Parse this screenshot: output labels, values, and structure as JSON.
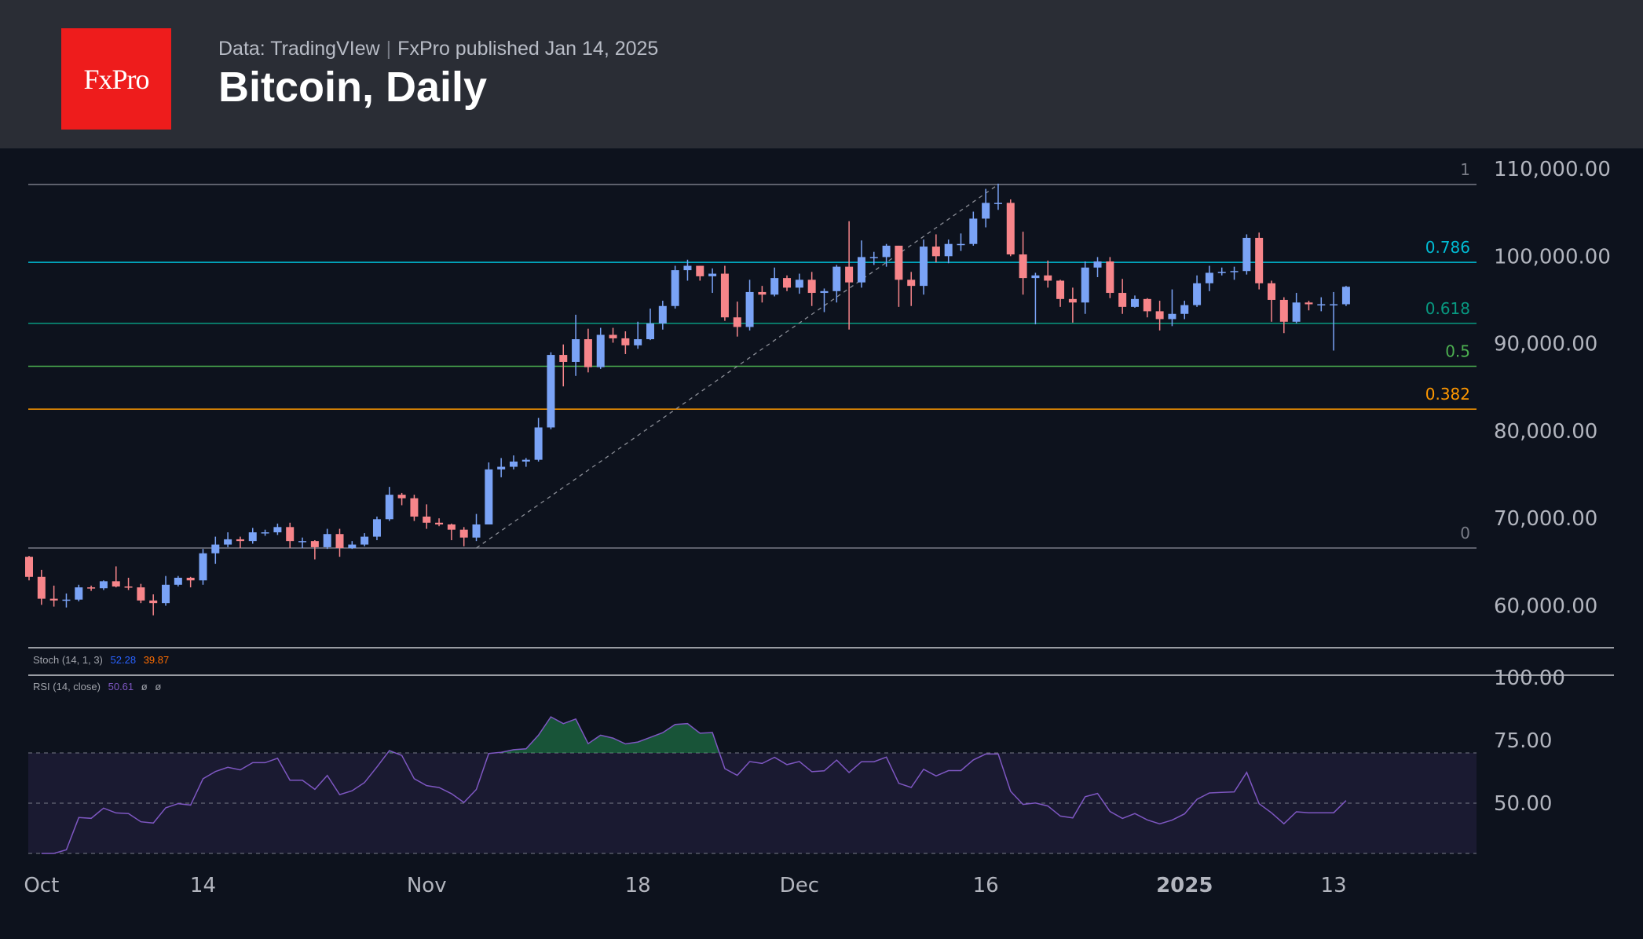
{
  "header": {
    "logo_text": "FxPro",
    "source": "Data: TradingVIew",
    "publisher": "FxPro published Jan 14, 2025",
    "title": "Bitcoin, Daily"
  },
  "colors": {
    "up": "#7aa3f6",
    "down": "#f7858a",
    "background": "#0d121d",
    "rsi": "#7e57c2"
  },
  "chart_data": [
    {
      "type": "candlestick",
      "title": "Bitcoin, Daily",
      "ylim": [
        53000,
        115000
      ],
      "y_ticks": [
        "110,000.00",
        "100,000.00",
        "90,000.00",
        "80,000.00",
        "70,000.00",
        "60,000.00"
      ],
      "y_tick_values": [
        110000,
        100000,
        90000,
        80000,
        70000,
        60000
      ],
      "x_ticks": [
        {
          "label": "Oct",
          "date": "2024-10-01"
        },
        {
          "label": "14",
          "date": "2024-10-14"
        },
        {
          "label": "Nov",
          "date": "2024-11-01"
        },
        {
          "label": "18",
          "date": "2024-11-18"
        },
        {
          "label": "Dec",
          "date": "2024-12-01"
        },
        {
          "label": "16",
          "date": "2024-12-16"
        },
        {
          "label": "2025",
          "date": "2025-01-01",
          "bold": true
        },
        {
          "label": "13",
          "date": "2025-01-13"
        }
      ],
      "fibonacci": {
        "from": {
          "date": "2024-11-05",
          "price": 66600
        },
        "to": {
          "date": "2024-12-17",
          "price": 108200
        },
        "levels": [
          {
            "label": "1",
            "ratio": 1,
            "color": "#787b86"
          },
          {
            "label": "0.786",
            "ratio": 0.786,
            "color": "#00bcd4"
          },
          {
            "label": "0.618",
            "ratio": 0.618,
            "color": "#089981"
          },
          {
            "label": "0.5",
            "ratio": 0.5,
            "color": "#4caf50"
          },
          {
            "label": "0.382",
            "ratio": 0.382,
            "color": "#ff9800"
          },
          {
            "label": "0",
            "ratio": 0,
            "color": "#787b86"
          }
        ]
      },
      "columns": [
        "date",
        "open",
        "high",
        "low",
        "close"
      ],
      "candles": [
        [
          "2024-09-30",
          65600,
          65700,
          62900,
          63300
        ],
        [
          "2024-10-01",
          63300,
          64100,
          60100,
          60800
        ],
        [
          "2024-10-02",
          60800,
          62300,
          59900,
          60600
        ],
        [
          "2024-10-03",
          60600,
          61400,
          59800,
          60700
        ],
        [
          "2024-10-04",
          60700,
          62400,
          60500,
          62100
        ],
        [
          "2024-10-05",
          62100,
          62300,
          61700,
          62000
        ],
        [
          "2024-10-06",
          62000,
          62900,
          61800,
          62800
        ],
        [
          "2024-10-07",
          62800,
          64500,
          62100,
          62200
        ],
        [
          "2024-10-08",
          62200,
          63200,
          61800,
          62100
        ],
        [
          "2024-10-09",
          62100,
          62500,
          60300,
          60600
        ],
        [
          "2024-10-10",
          60600,
          61300,
          58900,
          60300
        ],
        [
          "2024-10-11",
          60300,
          63400,
          60000,
          62400
        ],
        [
          "2024-10-12",
          62400,
          63400,
          62200,
          63200
        ],
        [
          "2024-10-13",
          63200,
          63300,
          62100,
          62900
        ],
        [
          "2024-10-14",
          62900,
          66500,
          62400,
          66000
        ],
        [
          "2024-10-15",
          66000,
          67900,
          64800,
          67000
        ],
        [
          "2024-10-16",
          67000,
          68400,
          66700,
          67600
        ],
        [
          "2024-10-17",
          67600,
          67900,
          66600,
          67400
        ],
        [
          "2024-10-18",
          67400,
          68900,
          67100,
          68400
        ],
        [
          "2024-10-19",
          68400,
          68700,
          68000,
          68400
        ],
        [
          "2024-10-20",
          68400,
          69400,
          68100,
          69000
        ],
        [
          "2024-10-21",
          69000,
          69500,
          66600,
          67400
        ],
        [
          "2024-10-22",
          67400,
          67800,
          66600,
          67400
        ],
        [
          "2024-10-23",
          67400,
          67500,
          65300,
          66700
        ],
        [
          "2024-10-24",
          66700,
          68800,
          66500,
          68200
        ],
        [
          "2024-10-25",
          68200,
          68800,
          65600,
          66600
        ],
        [
          "2024-10-26",
          66600,
          67400,
          66500,
          67000
        ],
        [
          "2024-10-27",
          67000,
          68300,
          66800,
          67900
        ],
        [
          "2024-10-28",
          67900,
          70200,
          67500,
          69900
        ],
        [
          "2024-10-29",
          69900,
          73600,
          69700,
          72700
        ],
        [
          "2024-10-30",
          72700,
          72900,
          71500,
          72300
        ],
        [
          "2024-10-31",
          72300,
          72700,
          69700,
          70200
        ],
        [
          "2024-11-01",
          70200,
          71600,
          68800,
          69500
        ],
        [
          "2024-11-02",
          69500,
          70000,
          69100,
          69300
        ],
        [
          "2024-11-03",
          69300,
          69400,
          67500,
          68700
        ],
        [
          "2024-11-04",
          68700,
          69000,
          66800,
          67800
        ],
        [
          "2024-11-05",
          67800,
          70500,
          67400,
          69300
        ],
        [
          "2024-11-06",
          69300,
          76400,
          69300,
          75600
        ],
        [
          "2024-11-07",
          75600,
          76900,
          74700,
          75900
        ],
        [
          "2024-11-08",
          75900,
          77200,
          75600,
          76500
        ],
        [
          "2024-11-09",
          76500,
          76900,
          75900,
          76700
        ],
        [
          "2024-11-10",
          76700,
          81500,
          76500,
          80400
        ],
        [
          "2024-11-11",
          80400,
          89000,
          80200,
          88700
        ],
        [
          "2024-11-12",
          88700,
          89900,
          85100,
          87900
        ],
        [
          "2024-11-13",
          87900,
          93300,
          86300,
          90500
        ],
        [
          "2024-11-14",
          90500,
          91700,
          86700,
          87300
        ],
        [
          "2024-11-15",
          87300,
          91800,
          87100,
          91000
        ],
        [
          "2024-11-16",
          91000,
          91800,
          90100,
          90600
        ],
        [
          "2024-11-17",
          90600,
          91400,
          88800,
          89800
        ],
        [
          "2024-11-18",
          89800,
          92500,
          89400,
          90500
        ],
        [
          "2024-11-19",
          90500,
          94000,
          90400,
          92300
        ],
        [
          "2024-11-20",
          92300,
          94900,
          91600,
          94300
        ],
        [
          "2024-11-21",
          94300,
          98900,
          94000,
          98400
        ],
        [
          "2024-11-22",
          98400,
          99600,
          97200,
          98900
        ],
        [
          "2024-11-23",
          98900,
          98900,
          97200,
          97700
        ],
        [
          "2024-11-24",
          97700,
          98600,
          95800,
          98000
        ],
        [
          "2024-11-25",
          98000,
          98900,
          92600,
          93000
        ],
        [
          "2024-11-26",
          93000,
          94800,
          90800,
          91900
        ],
        [
          "2024-11-27",
          91900,
          97300,
          91500,
          95900
        ],
        [
          "2024-11-28",
          95900,
          96600,
          94700,
          95600
        ],
        [
          "2024-11-29",
          95600,
          98700,
          95400,
          97500
        ],
        [
          "2024-11-30",
          97500,
          97800,
          96000,
          96400
        ],
        [
          "2024-12-01",
          96400,
          98000,
          95700,
          97300
        ],
        [
          "2024-12-02",
          97300,
          98200,
          94300,
          95800
        ],
        [
          "2024-12-03",
          95800,
          96300,
          93600,
          96000
        ],
        [
          "2024-12-04",
          96000,
          99000,
          94700,
          98800
        ],
        [
          "2024-12-05",
          98800,
          104000,
          91600,
          97000
        ],
        [
          "2024-12-06",
          97000,
          101800,
          96400,
          99900
        ],
        [
          "2024-12-07",
          99900,
          100500,
          99000,
          99900
        ],
        [
          "2024-12-08",
          99900,
          101400,
          98800,
          101200
        ],
        [
          "2024-12-09",
          101200,
          101200,
          94200,
          97300
        ],
        [
          "2024-12-10",
          97300,
          98200,
          94300,
          96600
        ],
        [
          "2024-12-11",
          96600,
          101900,
          95600,
          101100
        ],
        [
          "2024-12-12",
          101100,
          102500,
          99300,
          100000
        ],
        [
          "2024-12-13",
          100000,
          101900,
          99200,
          101400
        ],
        [
          "2024-12-14",
          101400,
          102600,
          100600,
          101400
        ],
        [
          "2024-12-15",
          101400,
          105100,
          101200,
          104300
        ],
        [
          "2024-12-16",
          104300,
          107700,
          103300,
          106100
        ],
        [
          "2024-12-17",
          106100,
          108300,
          105300,
          106100
        ],
        [
          "2024-12-18",
          106100,
          106500,
          100000,
          100200
        ],
        [
          "2024-12-19",
          100200,
          102800,
          95600,
          97500
        ],
        [
          "2024-12-20",
          97500,
          98100,
          92200,
          97800
        ],
        [
          "2024-12-21",
          97800,
          99500,
          96400,
          97200
        ],
        [
          "2024-12-22",
          97200,
          97300,
          94200,
          95100
        ],
        [
          "2024-12-23",
          95100,
          96400,
          92400,
          94700
        ],
        [
          "2024-12-24",
          94700,
          99400,
          93400,
          98700
        ],
        [
          "2024-12-25",
          98700,
          99900,
          97600,
          99400
        ],
        [
          "2024-12-26",
          99400,
          99900,
          95200,
          95800
        ],
        [
          "2024-12-27",
          95800,
          97400,
          93400,
          94200
        ],
        [
          "2024-12-28",
          94200,
          95500,
          94100,
          95100
        ],
        [
          "2024-12-29",
          95100,
          95200,
          93000,
          93700
        ],
        [
          "2024-12-30",
          93700,
          94900,
          91500,
          92800
        ],
        [
          "2024-12-31",
          92800,
          96200,
          92000,
          93400
        ],
        [
          "2025-01-01",
          93400,
          94900,
          92800,
          94400
        ],
        [
          "2025-01-02",
          94400,
          97800,
          94200,
          96900
        ],
        [
          "2025-01-03",
          96900,
          98900,
          96000,
          98100
        ],
        [
          "2025-01-04",
          98100,
          98700,
          97800,
          98200
        ],
        [
          "2025-01-05",
          98200,
          98800,
          97300,
          98300
        ],
        [
          "2025-01-06",
          98300,
          102500,
          97900,
          102100
        ],
        [
          "2025-01-07",
          102100,
          102700,
          96200,
          96900
        ],
        [
          "2025-01-08",
          96900,
          97200,
          92500,
          95000
        ],
        [
          "2025-01-09",
          95000,
          95300,
          91200,
          92500
        ],
        [
          "2025-01-10",
          92500,
          95800,
          92300,
          94700
        ],
        [
          "2025-01-11",
          94700,
          94900,
          93800,
          94500
        ],
        [
          "2025-01-12",
          94500,
          95300,
          93700,
          94500
        ],
        [
          "2025-01-13",
          94500,
          95900,
          89200,
          94500
        ],
        [
          "2025-01-14",
          94500,
          96600,
          94300,
          96500
        ]
      ]
    },
    {
      "type": "line",
      "indicator": "Stoch (14, 1, 3)",
      "values": [
        "52.28",
        "39.87"
      ],
      "value_colors": [
        "#2962ff",
        "#ff6d00"
      ]
    },
    {
      "type": "line",
      "indicator": "RSI (14, close)",
      "value": "50.61",
      "extra": [
        "ø",
        "ø"
      ],
      "ylim": [
        22,
        103
      ],
      "y_ticks": [
        "100.00",
        "75.00",
        "50.00"
      ],
      "y_tick_values": [
        100,
        75,
        50
      ],
      "bands": {
        "upper": 70,
        "middle": 50,
        "lower": 30
      },
      "period": 14
    }
  ]
}
